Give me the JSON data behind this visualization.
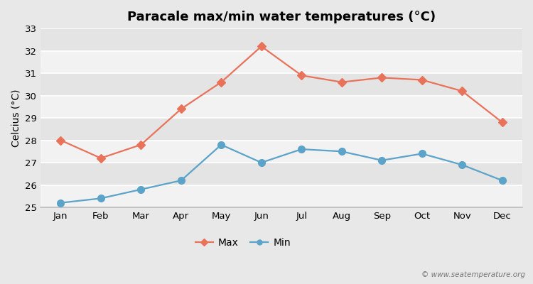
{
  "title": "Paracale max/min water temperatures (°C)",
  "ylabel": "Celcius (°C)",
  "months": [
    "Jan",
    "Feb",
    "Mar",
    "Apr",
    "May",
    "Jun",
    "Jul",
    "Aug",
    "Sep",
    "Oct",
    "Nov",
    "Dec"
  ],
  "max_temps": [
    28.0,
    27.2,
    27.8,
    29.4,
    30.6,
    32.2,
    30.9,
    30.6,
    30.8,
    30.7,
    30.2,
    28.8
  ],
  "min_temps": [
    25.2,
    25.4,
    25.8,
    26.2,
    27.8,
    27.0,
    27.6,
    27.5,
    27.1,
    27.4,
    26.9,
    26.2
  ],
  "max_color": "#e8735a",
  "min_color": "#5ba3c9",
  "fig_bg_color": "#e8e8e8",
  "plot_bg_color": "#ebebeb",
  "band_color_light": "#f2f2f2",
  "band_color_dark": "#e4e4e4",
  "grid_color": "#ffffff",
  "ylim": [
    25,
    33
  ],
  "yticks": [
    25,
    26,
    27,
    28,
    29,
    30,
    31,
    32,
    33
  ],
  "legend_labels": [
    "Max",
    "Min"
  ],
  "watermark": "© www.seatemperature.org",
  "title_fontsize": 13,
  "axis_label_fontsize": 10,
  "tick_fontsize": 9.5,
  "legend_fontsize": 10,
  "marker_style": "D",
  "marker_size": 6,
  "line_width": 1.6
}
